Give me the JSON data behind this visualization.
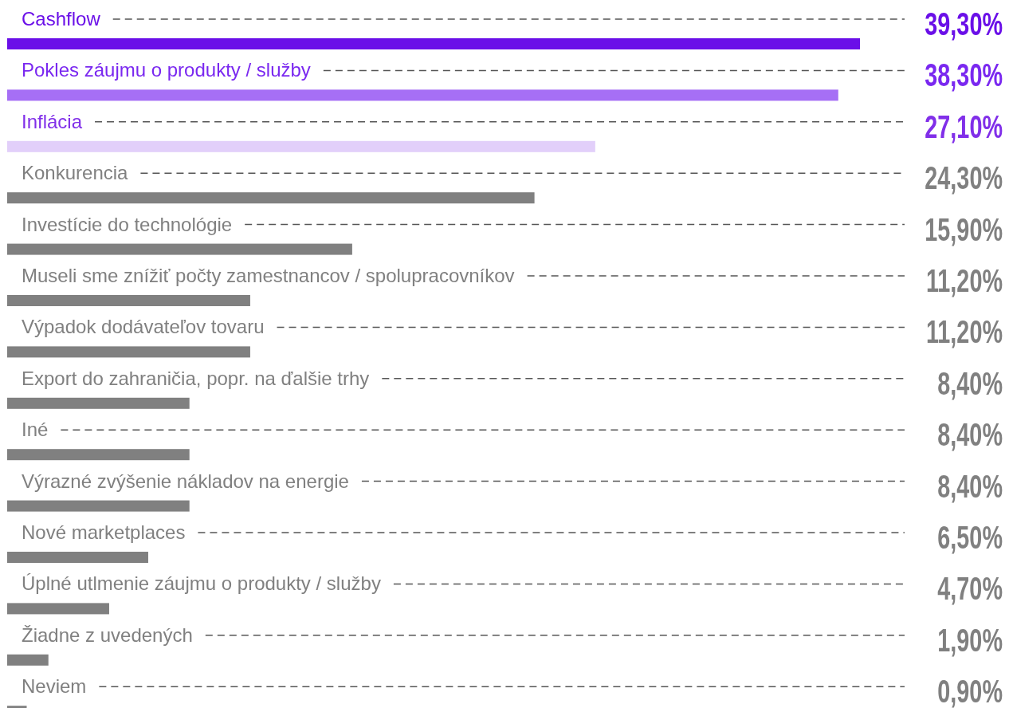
{
  "chart_data": {
    "type": "bar",
    "orientation": "horizontal",
    "categories": [
      "Cashflow",
      "Pokles záujmu o produkty / služby",
      "Inflácia",
      "Konkurencia",
      "Investície do technológie",
      "Museli sme znížiť počty zamestnancov / spolupracovníkov",
      "Výpadok dodávateľov tovaru",
      "Export do zahraničia, popr. na ďalšie trhy",
      "Iné",
      "Výrazné zvýšenie nákladov na energie",
      "Nové marketplaces",
      "Úplné utlmenie záujmu o produkty / služby",
      "Žiadne z uvedených",
      "Neviem"
    ],
    "values": [
      39.3,
      38.3,
      27.1,
      24.3,
      15.9,
      11.2,
      11.2,
      8.4,
      8.4,
      8.4,
      6.5,
      4.7,
      1.9,
      0.9
    ],
    "colors": [
      "#6a0fe8",
      "#a66ff5",
      "#e2cffa",
      "#808080",
      "#808080",
      "#808080",
      "#808080",
      "#808080",
      "#808080",
      "#808080",
      "#808080",
      "#808080",
      "#808080",
      "#808080"
    ],
    "value_labels": [
      "39,30%",
      "38,30%",
      "27,10%",
      "24,30%",
      "15,90%",
      "11,20%",
      "11,20%",
      "8,40%",
      "8,40%",
      "8,40%",
      "6,50%",
      "4,70%",
      "1,90%",
      "0,90%"
    ]
  }
}
